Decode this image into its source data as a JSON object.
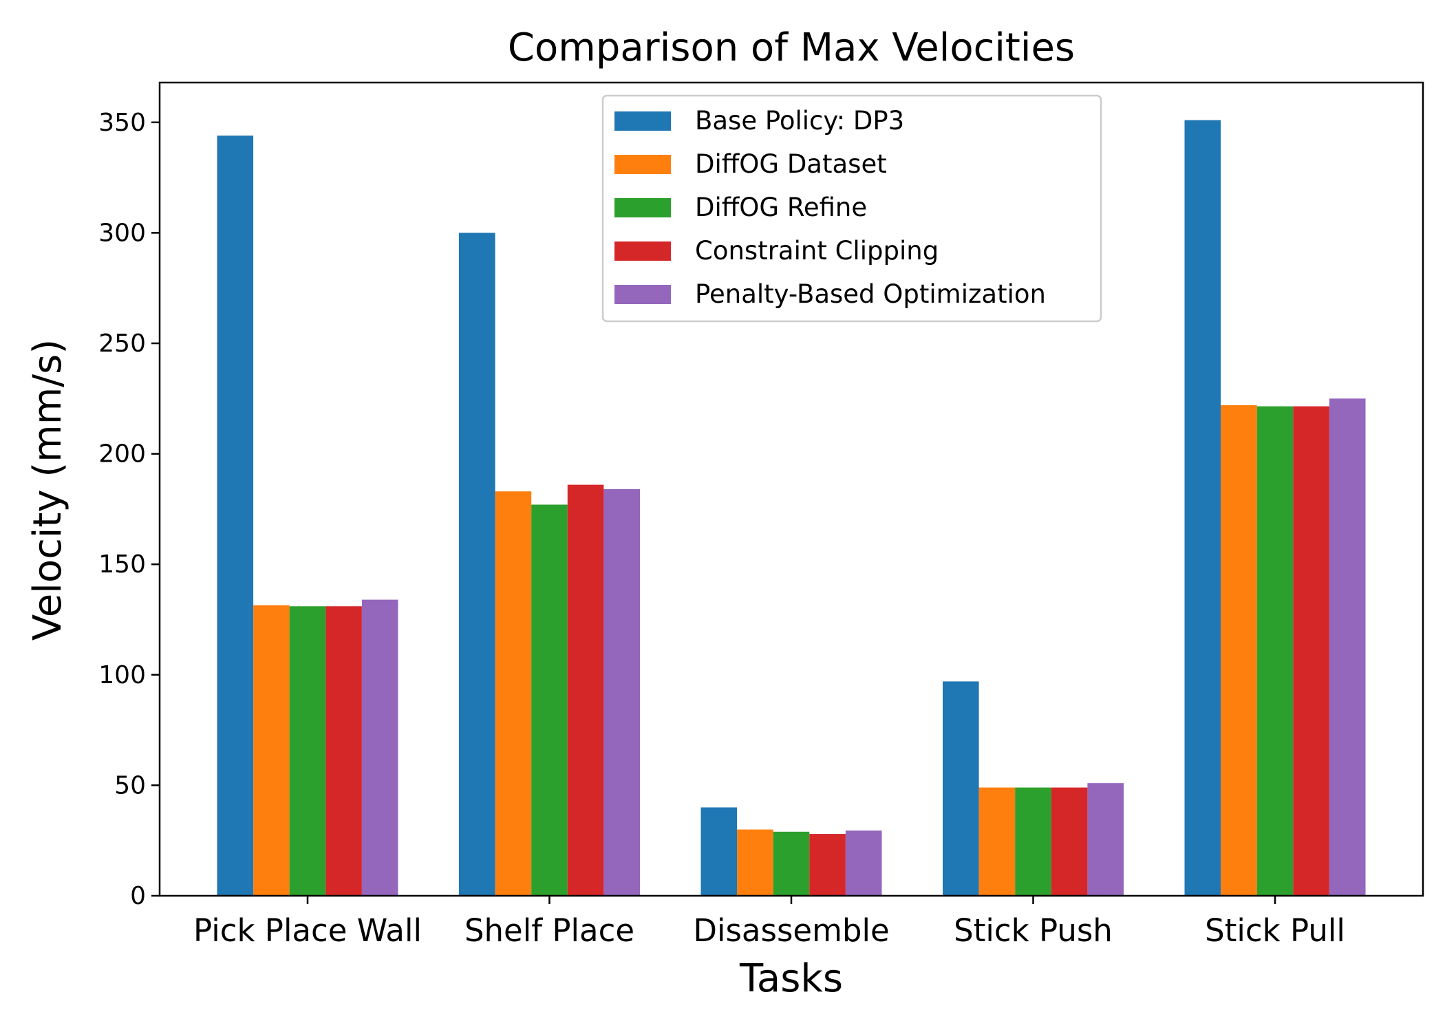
{
  "chart_data": {
    "type": "bar",
    "title": "Comparison of Max Velocities",
    "xlabel": "Tasks",
    "ylabel": "Velocity (mm/s)",
    "ylim": [
      0,
      368
    ],
    "yticks": [
      0,
      50,
      100,
      150,
      200,
      250,
      300,
      350
    ],
    "categories": [
      "Pick Place Wall",
      "Shelf Place",
      "Disassemble",
      "Stick Push",
      "Stick Pull"
    ],
    "legend_position": "top-center",
    "grid": false,
    "series": [
      {
        "name": "Base Policy: DP3",
        "color": "#1f77b4",
        "values": [
          344,
          300,
          40,
          97,
          351
        ]
      },
      {
        "name": "DiffOG Dataset",
        "color": "#ff7f0e",
        "values": [
          131.5,
          183,
          30,
          49,
          222
        ]
      },
      {
        "name": "DiffOG Refine",
        "color": "#2ca02c",
        "values": [
          131,
          177,
          29,
          49,
          221.5
        ]
      },
      {
        "name": "Constraint Clipping",
        "color": "#d62728",
        "values": [
          131,
          186,
          28,
          49,
          221.5
        ]
      },
      {
        "name": "Penalty-Based Optimization",
        "color": "#9467bd",
        "values": [
          134,
          184,
          29.5,
          51,
          225
        ]
      }
    ]
  }
}
